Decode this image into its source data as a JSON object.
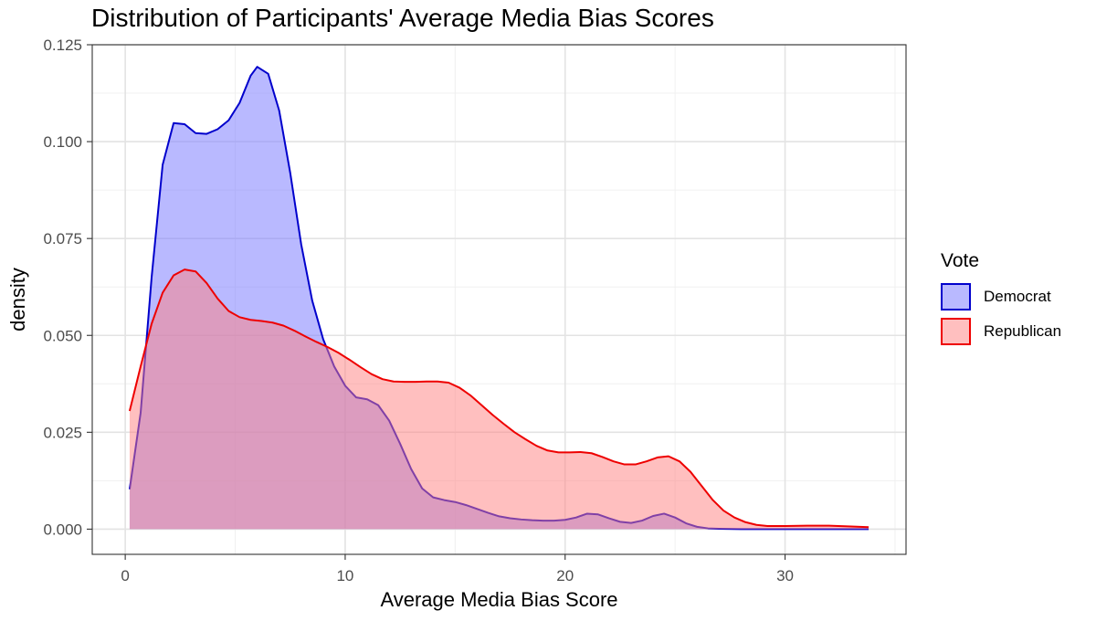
{
  "chart_data": {
    "type": "area",
    "title": "Distribution of Participants' Average Media Bias Scores",
    "xlabel": "Average Media Bias Score",
    "ylabel": "density",
    "xlim": [
      -1.5,
      35.5
    ],
    "ylim": [
      -0.0065,
      0.125
    ],
    "x_ticks": [
      0,
      10,
      20,
      30
    ],
    "x_tick_labels": [
      "0",
      "10",
      "20",
      "30"
    ],
    "y_ticks": [
      0,
      0.025,
      0.05,
      0.075,
      0.1,
      0.125
    ],
    "y_tick_labels": [
      "0.000",
      "0.025",
      "0.050",
      "0.075",
      "0.100",
      "0.125"
    ],
    "grid": true,
    "legend": {
      "title": "Vote",
      "position": "right"
    },
    "series": [
      {
        "name": "Democrat",
        "line_color": "#0000cc",
        "fill_color": "#8080ff",
        "fill_opacity": 0.55,
        "x": [
          0.2,
          0.7,
          1.2,
          1.7,
          2.2,
          2.7,
          3.2,
          3.7,
          4.2,
          4.7,
          5.2,
          5.7,
          6.0,
          6.5,
          7.0,
          7.5,
          8.0,
          8.5,
          9.0,
          9.5,
          10.0,
          10.5,
          11.0,
          11.5,
          12.0,
          12.5,
          13.0,
          13.5,
          14.0,
          14.5,
          15.0,
          15.5,
          16.0,
          16.5,
          17.0,
          17.5,
          18.0,
          18.5,
          19.0,
          19.5,
          20.0,
          20.5,
          21.0,
          21.5,
          22.0,
          22.5,
          23.0,
          23.5,
          24.0,
          24.5,
          25.0,
          25.5,
          26.0,
          26.5,
          27.0,
          28.0,
          29.0,
          30.0,
          31.0,
          32.0,
          33.0,
          33.8
        ],
        "y": [
          0.0103,
          0.03,
          0.065,
          0.094,
          0.1048,
          0.1045,
          0.1022,
          0.102,
          0.1032,
          0.1055,
          0.11,
          0.117,
          0.1193,
          0.1175,
          0.108,
          0.092,
          0.0735,
          0.059,
          0.049,
          0.042,
          0.037,
          0.034,
          0.0335,
          0.032,
          0.028,
          0.022,
          0.0155,
          0.0105,
          0.0082,
          0.0075,
          0.007,
          0.0062,
          0.0052,
          0.0042,
          0.0033,
          0.0028,
          0.0025,
          0.0023,
          0.0022,
          0.0022,
          0.0024,
          0.003,
          0.004,
          0.0038,
          0.0028,
          0.0019,
          0.0016,
          0.0022,
          0.0034,
          0.004,
          0.003,
          0.0015,
          0.0006,
          0.0002,
          0.0001,
          0.0,
          0.0,
          0.0,
          0.0,
          0.0,
          0.0,
          0.0
        ]
      },
      {
        "name": "Republican",
        "line_color": "#ee0000",
        "fill_color": "#ff8080",
        "fill_opacity": 0.5,
        "x": [
          0.2,
          0.7,
          1.2,
          1.7,
          2.2,
          2.7,
          3.2,
          3.7,
          4.2,
          4.7,
          5.2,
          5.7,
          6.2,
          6.7,
          7.2,
          7.7,
          8.2,
          8.7,
          9.2,
          9.7,
          10.2,
          10.7,
          11.2,
          11.7,
          12.2,
          12.7,
          13.2,
          13.7,
          14.2,
          14.7,
          15.2,
          15.7,
          16.2,
          16.7,
          17.2,
          17.7,
          18.2,
          18.7,
          19.2,
          19.7,
          20.2,
          20.7,
          21.2,
          21.7,
          22.2,
          22.7,
          23.2,
          23.7,
          24.2,
          24.7,
          25.2,
          25.7,
          26.2,
          26.7,
          27.2,
          27.7,
          28.2,
          28.7,
          29.2,
          30.0,
          31.0,
          32.0,
          33.0,
          33.8
        ],
        "y": [
          0.0305,
          0.042,
          0.053,
          0.061,
          0.0655,
          0.067,
          0.0665,
          0.0635,
          0.0595,
          0.0563,
          0.0547,
          0.054,
          0.0537,
          0.0533,
          0.0525,
          0.0512,
          0.0497,
          0.0483,
          0.047,
          0.0455,
          0.0437,
          0.0418,
          0.04,
          0.0387,
          0.0381,
          0.038,
          0.038,
          0.0381,
          0.0381,
          0.0378,
          0.0365,
          0.0345,
          0.032,
          0.0295,
          0.0272,
          0.025,
          0.0232,
          0.0215,
          0.0203,
          0.0198,
          0.0198,
          0.0199,
          0.0196,
          0.0186,
          0.0175,
          0.0167,
          0.0167,
          0.0175,
          0.0185,
          0.0188,
          0.0175,
          0.0148,
          0.0112,
          0.0076,
          0.0048,
          0.003,
          0.0018,
          0.0011,
          0.0008,
          0.0008,
          0.0009,
          0.0009,
          0.0007,
          0.0005
        ]
      }
    ]
  }
}
